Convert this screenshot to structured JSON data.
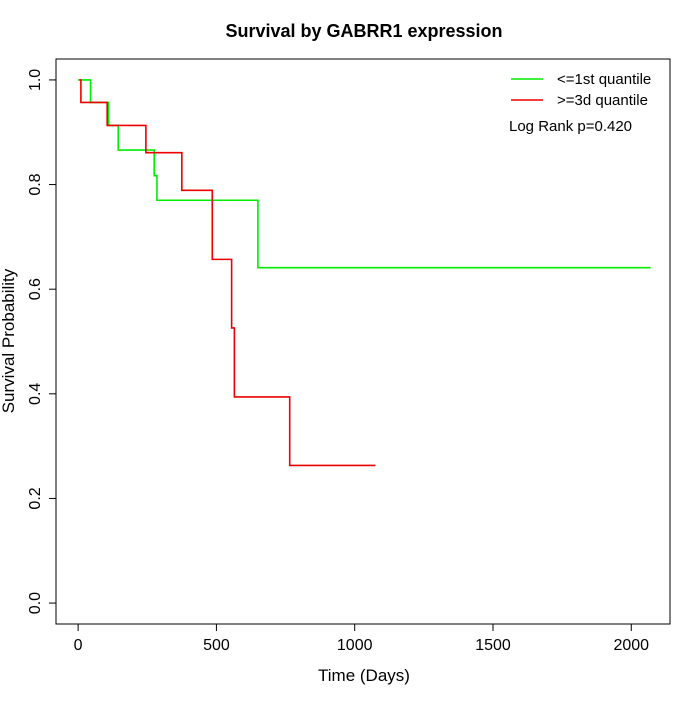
{
  "chart_data": {
    "type": "line",
    "title": "Survival by GABRR1 expression",
    "xlabel": "Time (Days)",
    "ylabel": "Survival Probability",
    "xlim": [
      -80,
      2140
    ],
    "ylim": [
      -0.04,
      1.04
    ],
    "xticks": [
      0,
      500,
      1000,
      1500,
      2000
    ],
    "yticks": [
      0.0,
      0.2,
      0.4,
      0.6,
      0.8,
      1.0
    ],
    "xtick_labels": [
      "0",
      "500",
      "1000",
      "1500",
      "2000"
    ],
    "ytick_labels": [
      "0.0",
      "0.2",
      "0.4",
      "0.6",
      "0.8",
      "1.0"
    ],
    "grid": false,
    "legend_position": "top-right",
    "annotation": "Log Rank p=0.420",
    "series": [
      {
        "name": "<=1st quantile",
        "color": "#00ee00",
        "step": true,
        "x": [
          0,
          45,
          110,
          145,
          275,
          285,
          650,
          2070
        ],
        "y": [
          1.0,
          0.957,
          0.913,
          0.866,
          0.817,
          0.77,
          0.641,
          0.641
        ]
      },
      {
        "name": ">=3d quantile",
        "color": "#ee0000",
        "step": true,
        "x": [
          5,
          10,
          105,
          245,
          375,
          485,
          555,
          565,
          765,
          1075
        ],
        "y": [
          1.0,
          0.957,
          0.913,
          0.861,
          0.789,
          0.657,
          0.526,
          0.394,
          0.263,
          0.263
        ]
      }
    ]
  }
}
